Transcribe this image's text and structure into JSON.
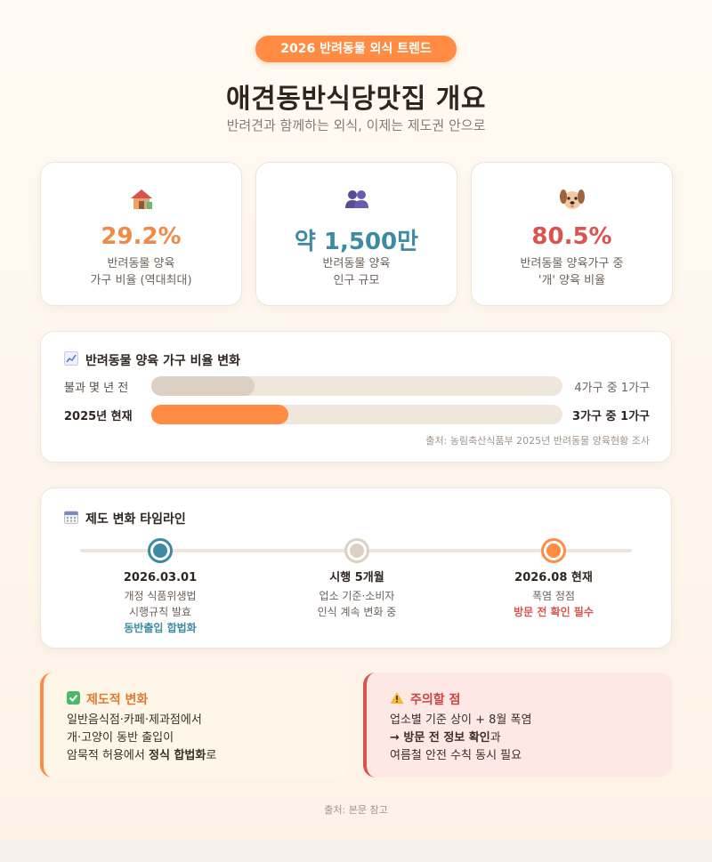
{
  "header": {
    "badge": "2026 반려동물 외식 트렌드",
    "title": "애견동반식당맛집 개요",
    "subtitle": "반려견과 함께하는 외식, 이제는 제도권 안으로"
  },
  "stats": [
    {
      "icon": "house-icon",
      "value": "29.2%",
      "label1": "반려동물 양육",
      "label2": "가구 비율 (역대최대)",
      "color": "#f08a48"
    },
    {
      "icon": "people-icon",
      "value": "약 1,500만",
      "label1": "반려동물 양육",
      "label2": "인구 규모",
      "color": "#3d8aa3"
    },
    {
      "icon": "dog-icon",
      "value": "80.5%",
      "label1": "반려동물 양육가구 중",
      "label2": "'개' 양육 비율",
      "color": "#d9534f"
    }
  ],
  "ratio": {
    "title": "반려동물 양육 가구 비율 변화",
    "rows": [
      {
        "label": "불과 몇 년 전",
        "value_text": "4가구 중 1가구",
        "fraction": 0.25,
        "color": "#dcd0c3"
      },
      {
        "label": "2025년 현재",
        "value_text": "3가구 중 1가구",
        "fraction": 0.333,
        "color": "#ff8c42"
      }
    ],
    "source": "출처: 농림축산식품부 2025년 반려동물 양육현황 조사"
  },
  "timeline": {
    "title": "제도 변화 타임라인",
    "items": [
      {
        "head": "2026.03.01",
        "line1": "개정 식품위생법",
        "line2": "시행규칙 발효",
        "highlight": "동반출입 합법화",
        "node_color": "#3d8aa3",
        "ring_color": "#3d8aa3"
      },
      {
        "head": "시행 5개월",
        "line1": "업소 기준·소비자",
        "line2": "인식 계속 변화 중",
        "highlight": "",
        "node_color": "#dcd0c3",
        "ring_color": "#dcd0c3"
      },
      {
        "head": "2026.08 현재",
        "line1": "폭염 정점",
        "line2": "",
        "highlight": "방문 전 확인 필수",
        "node_color": "#ff8c42",
        "ring_color": "#ff8c42"
      }
    ]
  },
  "notes": {
    "left": {
      "title": "제도적 변화",
      "line1": "일반음식점·카페·제과점에서",
      "line2": "개·고양이 동반 출입이",
      "line3_pre": "암묵적 허용에서 ",
      "line3_bold": "정식 합법화",
      "line3_post": "로"
    },
    "right": {
      "title": "주의할 점",
      "line1": "업소별 기준 상이 + 8월 폭염",
      "line2_bold": "→ 방문 전 정보 확인",
      "line2_post": "과",
      "line3": "여름철 안전 수칙 동시 필요"
    }
  },
  "footer": {
    "source": "출처: 본문 참고"
  }
}
